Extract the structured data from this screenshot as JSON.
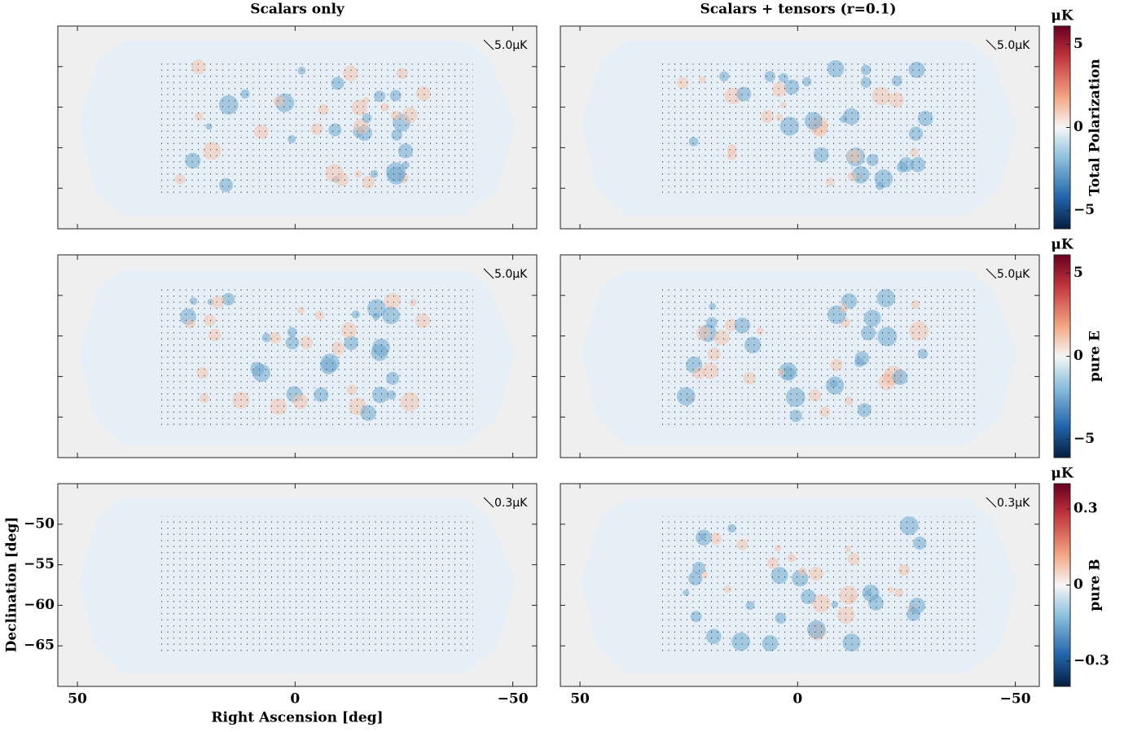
{
  "columns": [
    {
      "title": "Scalars only"
    },
    {
      "title": "Scalars + tensors (r=0.1)"
    }
  ],
  "rows": [
    {
      "scale_labels": [
        "5.0μK",
        "5.0μK"
      ],
      "colorbar": {
        "unit": "μK",
        "label": "Total Polarization",
        "lim": [
          -6.1,
          6.1
        ],
        "ticks": [
          {
            "value": -5,
            "label": "−5"
          },
          0,
          5
        ]
      }
    },
    {
      "scale_labels": [
        "5.0μK",
        "5.0μK"
      ],
      "colorbar": {
        "unit": "μK",
        "label": "pure E",
        "lim": [
          -6.1,
          6.1
        ],
        "ticks": [
          {
            "value": -5,
            "label": "−5"
          },
          0,
          5
        ]
      }
    },
    {
      "scale_labels": [
        "0.3μK",
        "0.3μK"
      ],
      "colorbar": {
        "unit": "μK",
        "label": "pure B",
        "lim": [
          -0.4,
          0.4
        ],
        "ticks": [
          {
            "value": -0.3,
            "label": "−0.3"
          },
          0,
          0.3
        ]
      }
    }
  ],
  "x_axis": {
    "label": "Right Ascension [deg]",
    "lim": [
      54.5,
      -55.5
    ],
    "ticks": [
      50,
      0,
      {
        "value": -50,
        "label": "−50"
      }
    ]
  },
  "y_axis": {
    "label": "Declination [deg]",
    "lim": [
      -70,
      -45
    ],
    "ticks": [
      {
        "value": -65,
        "label": "−65"
      },
      {
        "value": -60,
        "label": "−60"
      },
      {
        "value": -55,
        "label": "−55"
      },
      {
        "value": -50,
        "label": "−50"
      }
    ]
  }
}
